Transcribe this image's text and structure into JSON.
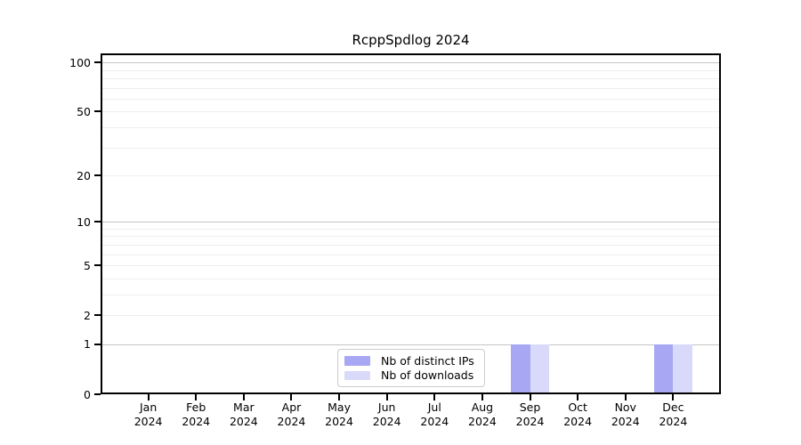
{
  "title": "RcppSpdlog 2024",
  "colors": {
    "axis": "#000000",
    "grid_major": "#c4c4c4",
    "grid_minor": "#eeeeee",
    "legend_border": "#cccccc",
    "background": "#ffffff",
    "ips_bar": "#a7a7f4",
    "downloads_bar": "#d9d9fa"
  },
  "chart_data": {
    "type": "bar",
    "title": "RcppSpdlog 2024",
    "categories": [
      "Jan 2024",
      "Feb 2024",
      "Mar 2024",
      "Apr 2024",
      "May 2024",
      "Jun 2024",
      "Jul 2024",
      "Aug 2024",
      "Sep 2024",
      "Oct 2024",
      "Nov 2024",
      "Dec 2024"
    ],
    "series": [
      {
        "name": "Nb of distinct IPs",
        "values": [
          0,
          0,
          0,
          0,
          0,
          0,
          0,
          0,
          1,
          0,
          0,
          1
        ],
        "color": "#a7a7f4"
      },
      {
        "name": "Nb of downloads",
        "values": [
          0,
          0,
          0,
          0,
          0,
          0,
          0,
          0,
          1,
          0,
          0,
          1
        ],
        "color": "#d9d9fa"
      }
    ],
    "xlabel": "",
    "ylabel": "",
    "yscale": "log1p",
    "y_tick_values": [
      0,
      1,
      2,
      5,
      10,
      20,
      50,
      100
    ],
    "y_major_gridlines": [
      1,
      10,
      100
    ],
    "y_minor_gridlines": [
      2,
      3,
      4,
      5,
      6,
      7,
      8,
      9,
      20,
      30,
      40,
      50,
      60,
      70,
      80,
      90
    ],
    "ylim": [
      0,
      113
    ],
    "grid": true,
    "legend_position": "inside-bottom-center"
  }
}
